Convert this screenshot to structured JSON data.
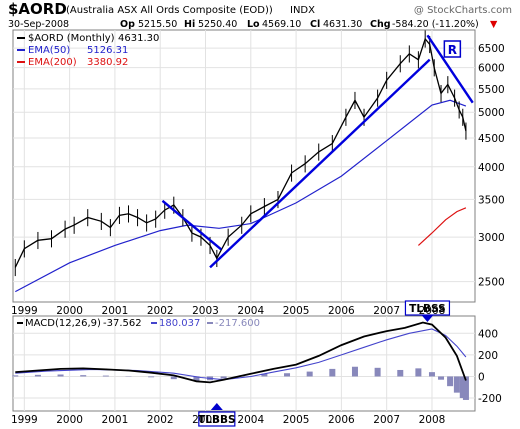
{
  "header": {
    "symbol": "$AORD",
    "name": "(Australia ASX All Ords Composite (EOD))",
    "exchange": "INDX",
    "date": "30-Sep-2008",
    "open_label": "Op",
    "open": "5215.50",
    "high_label": "Hi",
    "high": "5250.40",
    "low_label": "Lo",
    "low": "4569.10",
    "close_label": "Cl",
    "close": "4631.30",
    "chg_label": "Chg",
    "chg": "-584.20 (-11.20%)",
    "chg_arrow": "▼",
    "watermark": "@ StockCharts.com"
  },
  "colors": {
    "price": "#000000",
    "ema50": "#2222cc",
    "ema200": "#dd1111",
    "trendline": "#0000dd",
    "macd": "#000000",
    "signal": "#4444cc",
    "histogram": "#8888bb",
    "annotation": "#0000cc",
    "axis_border": "#808080",
    "chg_arrow": "#dd0000"
  },
  "chart_data": [
    {
      "type": "candlestick",
      "title": "$AORD (Australia ASX All Ords Composite (EOD)) INDX",
      "legend": [
        {
          "label": "$AORD (Monthly)",
          "value": "4631.30",
          "color": "#000000"
        },
        {
          "label": "EMA(50)",
          "value": "5126.31",
          "color": "#2222cc"
        },
        {
          "label": "EMA(200)",
          "value": "3380.92",
          "color": "#dd1111"
        }
      ],
      "legend_position": "top-left",
      "x_ticks": [
        "1999",
        "2000",
        "2001",
        "2002",
        "2003",
        "2004",
        "2005",
        "2006",
        "2007",
        "2008"
      ],
      "y_ticks": [
        "2500",
        "3000",
        "3500",
        "4000",
        "4500",
        "5000",
        "5500",
        "6000",
        "6500"
      ],
      "y_scale": "log",
      "ylim": [
        2300,
        7000
      ],
      "xlim": [
        1998.75,
        2008.95
      ],
      "grid": true,
      "price_path": [
        [
          1998.8,
          2650
        ],
        [
          1999.0,
          2860
        ],
        [
          1999.3,
          2960
        ],
        [
          1999.6,
          2980
        ],
        [
          1999.9,
          3100
        ],
        [
          2000.1,
          3150
        ],
        [
          2000.4,
          3250
        ],
        [
          2000.7,
          3200
        ],
        [
          2000.9,
          3120
        ],
        [
          2001.1,
          3280
        ],
        [
          2001.3,
          3300
        ],
        [
          2001.5,
          3250
        ],
        [
          2001.7,
          3180
        ],
        [
          2001.9,
          3230
        ],
        [
          2002.1,
          3350
        ],
        [
          2002.3,
          3420
        ],
        [
          2002.5,
          3250
        ],
        [
          2002.7,
          3050
        ],
        [
          2002.9,
          3000
        ],
        [
          2003.1,
          2900
        ],
        [
          2003.25,
          2750
        ],
        [
          2003.5,
          3000
        ],
        [
          2003.8,
          3150
        ],
        [
          2004.0,
          3300
        ],
        [
          2004.3,
          3400
        ],
        [
          2004.6,
          3500
        ],
        [
          2004.9,
          3900
        ],
        [
          2005.2,
          4050
        ],
        [
          2005.5,
          4250
        ],
        [
          2005.8,
          4400
        ],
        [
          2006.1,
          4900
        ],
        [
          2006.3,
          5250
        ],
        [
          2006.5,
          4900
        ],
        [
          2006.8,
          5300
        ],
        [
          2007.0,
          5700
        ],
        [
          2007.3,
          6100
        ],
        [
          2007.5,
          6350
        ],
        [
          2007.7,
          6200
        ],
        [
          2007.85,
          6750
        ],
        [
          2007.95,
          6600
        ],
        [
          2008.05,
          6000
        ],
        [
          2008.2,
          5400
        ],
        [
          2008.35,
          5600
        ],
        [
          2008.5,
          5300
        ],
        [
          2008.6,
          5050
        ],
        [
          2008.68,
          4900
        ],
        [
          2008.75,
          4631
        ]
      ],
      "ema50": [
        [
          1998.8,
          2400
        ],
        [
          2000.0,
          2700
        ],
        [
          2001.0,
          2900
        ],
        [
          2002.0,
          3080
        ],
        [
          2002.6,
          3150
        ],
        [
          2003.3,
          3110
        ],
        [
          2004.0,
          3170
        ],
        [
          2005.0,
          3450
        ],
        [
          2006.0,
          3850
        ],
        [
          2007.0,
          4450
        ],
        [
          2008.0,
          5150
        ],
        [
          2008.4,
          5250
        ],
        [
          2008.75,
          5126
        ]
      ],
      "ema200": [
        [
          2007.7,
          2900
        ],
        [
          2008.0,
          3050
        ],
        [
          2008.3,
          3220
        ],
        [
          2008.55,
          3330
        ],
        [
          2008.75,
          3381
        ]
      ],
      "trendlines": [
        {
          "from": [
            2002.05,
            3480
          ],
          "to": [
            2003.35,
            2850
          ]
        },
        {
          "from": [
            2003.1,
            2650
          ],
          "to": [
            2007.95,
            6200
          ]
        },
        {
          "from": [
            2007.9,
            6850
          ],
          "to": [
            2008.9,
            5200
          ]
        }
      ],
      "annotations": [
        {
          "text": "R",
          "x": 2008.45,
          "y": 6450
        }
      ]
    },
    {
      "type": "line",
      "legend": [
        {
          "label": "MACD(12,26,9)",
          "value": "-37.562",
          "color": "#000000"
        },
        {
          "label": "",
          "value": "180.037",
          "color": "#4444cc"
        },
        {
          "label": "",
          "value": "-217.600",
          "color": "#8888bb"
        }
      ],
      "legend_position": "top-left",
      "x_ticks": [
        "1999",
        "2000",
        "2001",
        "2002",
        "2003",
        "2004",
        "2005",
        "2006",
        "2007",
        "2008"
      ],
      "y_ticks": [
        "-200",
        "0",
        "200",
        "400"
      ],
      "ylim": [
        -320,
        560
      ],
      "xlim": [
        1998.75,
        2008.95
      ],
      "grid": true,
      "macd": [
        [
          1998.8,
          40
        ],
        [
          1999.3,
          55
        ],
        [
          1999.8,
          70
        ],
        [
          2000.3,
          75
        ],
        [
          2000.8,
          65
        ],
        [
          2001.3,
          55
        ],
        [
          2001.8,
          35
        ],
        [
          2002.3,
          10
        ],
        [
          2002.8,
          -45
        ],
        [
          2003.1,
          -55
        ],
        [
          2003.4,
          -30
        ],
        [
          2004.0,
          25
        ],
        [
          2004.5,
          70
        ],
        [
          2005.0,
          110
        ],
        [
          2005.5,
          190
        ],
        [
          2006.0,
          290
        ],
        [
          2006.5,
          370
        ],
        [
          2007.0,
          420
        ],
        [
          2007.4,
          450
        ],
        [
          2007.8,
          500
        ],
        [
          2008.0,
          480
        ],
        [
          2008.3,
          360
        ],
        [
          2008.55,
          190
        ],
        [
          2008.75,
          -37.562
        ]
      ],
      "signal": [
        [
          1998.8,
          30
        ],
        [
          1999.5,
          50
        ],
        [
          2000.5,
          65
        ],
        [
          2001.5,
          55
        ],
        [
          2002.3,
          30
        ],
        [
          2002.9,
          -10
        ],
        [
          2003.4,
          -30
        ],
        [
          2004.0,
          0
        ],
        [
          2004.5,
          40
        ],
        [
          2005.0,
          80
        ],
        [
          2005.5,
          130
        ],
        [
          2006.0,
          200
        ],
        [
          2006.5,
          270
        ],
        [
          2007.0,
          340
        ],
        [
          2007.5,
          400
        ],
        [
          2008.0,
          440
        ],
        [
          2008.3,
          380
        ],
        [
          2008.55,
          280
        ],
        [
          2008.75,
          180.037
        ]
      ],
      "histogram": [
        [
          1998.8,
          10
        ],
        [
          1999.3,
          15
        ],
        [
          1999.8,
          18
        ],
        [
          2000.3,
          12
        ],
        [
          2000.8,
          8
        ],
        [
          2001.3,
          3
        ],
        [
          2001.8,
          -8
        ],
        [
          2002.3,
          -25
        ],
        [
          2002.8,
          -40
        ],
        [
          2003.1,
          -35
        ],
        [
          2003.4,
          -20
        ],
        [
          2003.8,
          10
        ],
        [
          2004.3,
          25
        ],
        [
          2004.8,
          30
        ],
        [
          2005.3,
          45
        ],
        [
          2005.8,
          70
        ],
        [
          2006.3,
          90
        ],
        [
          2006.8,
          80
        ],
        [
          2007.3,
          60
        ],
        [
          2007.7,
          75
        ],
        [
          2008.0,
          40
        ],
        [
          2008.2,
          -30
        ],
        [
          2008.4,
          -90
        ],
        [
          2008.55,
          -150
        ],
        [
          2008.68,
          -200
        ],
        [
          2008.75,
          -217.6
        ]
      ],
      "annotations": [
        {
          "text": "TLBBS",
          "x": 2003.25,
          "direction": "up"
        },
        {
          "text": "TLBSS",
          "x": 2007.9,
          "direction": "down"
        }
      ]
    }
  ]
}
